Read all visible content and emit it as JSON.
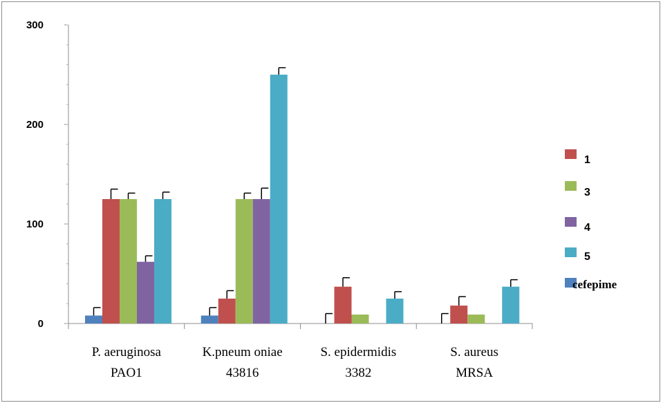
{
  "chart_data": {
    "type": "bar",
    "categories": [
      [
        "P. aeruginosa",
        "PAO1"
      ],
      [
        "K.pneum oniae",
        "43816"
      ],
      [
        "S. epidermidis",
        "3382"
      ],
      [
        "S. aureus",
        "MRSA"
      ]
    ],
    "series_order_in_group": [
      "cefepime",
      "1",
      "3",
      "4",
      "5"
    ],
    "series": [
      {
        "name": "cefepime",
        "color": "#4f81bd",
        "values": [
          8,
          8,
          0,
          0
        ],
        "errors": [
          8,
          8,
          10,
          10
        ]
      },
      {
        "name": "1",
        "color": "#c0504d",
        "values": [
          125,
          25,
          37,
          18
        ],
        "errors": [
          10,
          8,
          9,
          9
        ]
      },
      {
        "name": "3",
        "color": "#9bbb59",
        "values": [
          125,
          125,
          9,
          9
        ],
        "errors": [
          6,
          6,
          0,
          0
        ]
      },
      {
        "name": "4",
        "color": "#8064a2",
        "values": [
          62,
          125,
          0,
          0
        ],
        "errors": [
          6,
          11,
          0,
          0
        ]
      },
      {
        "name": "5",
        "color": "#4bacc6",
        "values": [
          125,
          250,
          25,
          37
        ],
        "errors": [
          7,
          7,
          7,
          7
        ]
      }
    ],
    "legend_order": [
      "1",
      "3",
      "4",
      "5",
      "cefepime"
    ],
    "legend_position": "right",
    "yticks": [
      "0",
      "100",
      "200",
      "300"
    ],
    "ylim": [
      0,
      300
    ],
    "grid": false,
    "title": "",
    "xlabel": "",
    "ylabel": ""
  }
}
